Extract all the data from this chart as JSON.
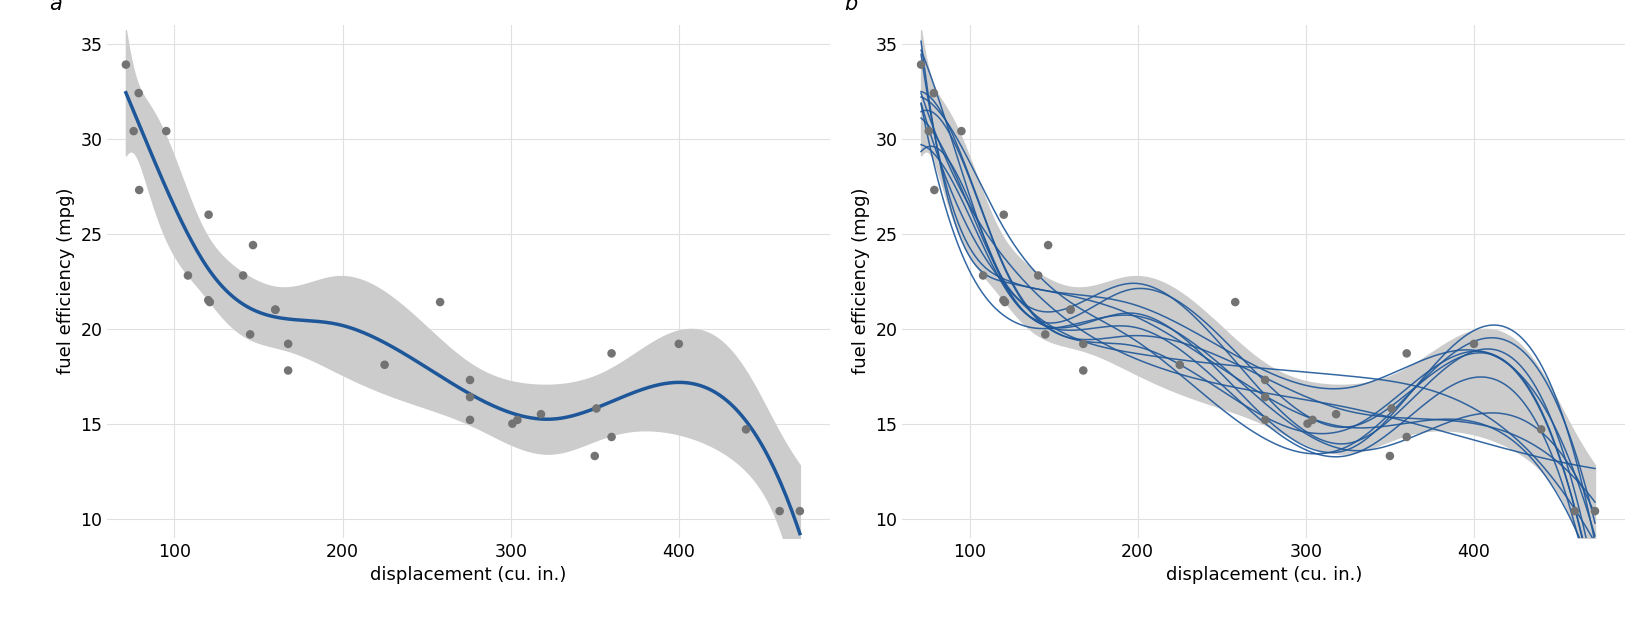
{
  "title_a": "a",
  "title_b": "b",
  "xlabel": "displacement (cu. in.)",
  "ylabel": "fuel efficiency (mpg)",
  "xlim": [
    60,
    490
  ],
  "ylim": [
    9,
    36
  ],
  "xticks": [
    100,
    200,
    300,
    400
  ],
  "yticks": [
    10,
    15,
    20,
    25,
    30,
    35
  ],
  "dot_color": "#737373",
  "dot_size": 38,
  "line_color": "#1e5799",
  "band_color": "#cccccc",
  "n_posterior": 12,
  "disp": [
    160,
    160,
    108,
    258,
    360,
    225,
    360,
    146.7,
    140.8,
    167.6,
    167.6,
    275.8,
    275.8,
    275.8,
    472,
    460,
    440,
    78.7,
    75.7,
    71.1,
    120.1,
    318,
    304,
    350,
    400,
    79,
    120.3,
    95.1,
    351,
    145,
    301,
    121
  ],
  "mpg": [
    21,
    21,
    22.8,
    21.4,
    18.7,
    18.1,
    14.3,
    24.4,
    22.8,
    19.2,
    17.8,
    16.4,
    17.3,
    15.2,
    10.4,
    10.4,
    14.7,
    32.4,
    30.4,
    33.9,
    21.5,
    15.5,
    15.2,
    13.3,
    19.2,
    27.3,
    26,
    30.4,
    15.8,
    19.7,
    15,
    21.4
  ],
  "background_color": "#ffffff",
  "figsize": [
    16.5,
    6.18
  ],
  "dpi": 100
}
